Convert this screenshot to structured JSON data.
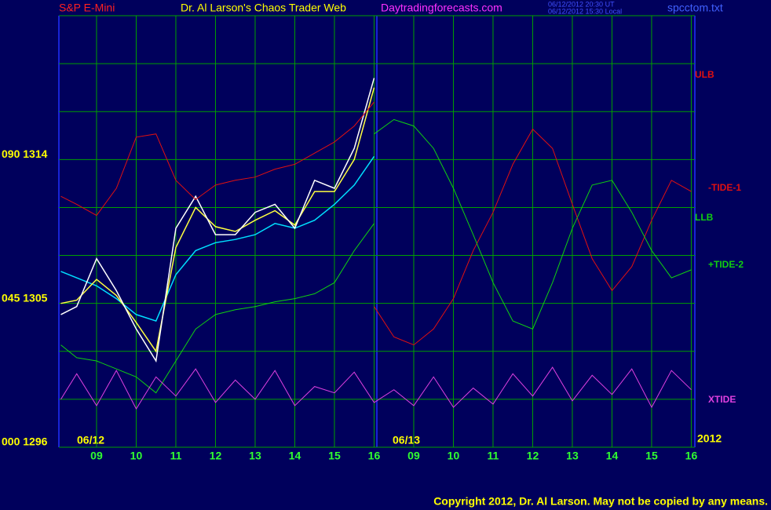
{
  "chart_data": {
    "type": "line",
    "header": {
      "instrument": "S&P E-Mini",
      "title": "Dr. Al Larson's Chaos Trader Web",
      "site": "Daytradingforecasts.com",
      "time_ut": "06/12/2012 20:30 UT",
      "time_local": "06/12/2012 15:30 Local",
      "file": "spcctom.txt"
    },
    "day_labels": [
      "06/12",
      "06/13"
    ],
    "year_label": "2012",
    "copyright": "Copyright 2012, Dr. Al Larson. May not be copied by any means.",
    "x": [
      -0.9,
      -0.5,
      0,
      0.5,
      1,
      1.5,
      2,
      2.5,
      3,
      3.5,
      4,
      4.5,
      5,
      5.5,
      6,
      6.5,
      7,
      7.5,
      8,
      8.5,
      9,
      9.5,
      10,
      10.5,
      11,
      11.5,
      12,
      12.5,
      13,
      13.5,
      14,
      14.5,
      15
    ],
    "xlim": [
      -0.95,
      15.09
    ],
    "xticks": [
      {
        "value": 0,
        "label": "09"
      },
      {
        "value": 1,
        "label": "10"
      },
      {
        "value": 2,
        "label": "11"
      },
      {
        "value": 3,
        "label": "12"
      },
      {
        "value": 4,
        "label": "13"
      },
      {
        "value": 5,
        "label": "14"
      },
      {
        "value": 6,
        "label": "15"
      },
      {
        "value": 7,
        "label": "16"
      },
      {
        "value": 8,
        "label": "09"
      },
      {
        "value": 9,
        "label": "10"
      },
      {
        "value": 10,
        "label": "11"
      },
      {
        "value": 11,
        "label": "12"
      },
      {
        "value": 12,
        "label": "13"
      },
      {
        "value": 13,
        "label": "14"
      },
      {
        "value": 14,
        "label": "15"
      },
      {
        "value": 15,
        "label": "16"
      }
    ],
    "ylim": [
      1296,
      1323
    ],
    "yticks": [
      {
        "value": 1296,
        "label": "000 1296"
      },
      {
        "value": 1305,
        "label": "045 1305"
      },
      {
        "value": 1314,
        "label": "090 1314"
      }
    ],
    "ygrid": [
      1299,
      1302,
      1308,
      1311,
      1317,
      1320
    ],
    "grid": true,
    "series": [
      {
        "color": "#00e0ff",
        "values": [
          1307.0,
          1306.6,
          1306.1,
          1305.3,
          1304.3,
          1303.9,
          1306.8,
          1308.3,
          1308.8,
          1309.0,
          1309.3,
          1310.0,
          1309.7,
          1310.2,
          1311.2,
          1312.4,
          1314.2,
          null,
          null,
          null,
          null,
          null,
          null,
          null,
          null,
          null,
          null,
          null,
          null,
          null,
          null,
          null,
          null
        ]
      },
      {
        "color": "#ffff40",
        "values": [
          1305.0,
          1305.2,
          1306.5,
          1305.5,
          1303.8,
          1302.0,
          1308.5,
          1311.0,
          1309.8,
          1309.5,
          1310.2,
          1310.8,
          1309.9,
          1312.0,
          1312.0,
          1314.0,
          1318.5,
          null,
          null,
          null,
          null,
          null,
          null,
          null,
          null,
          null,
          null,
          null,
          null,
          null,
          null,
          null,
          null
        ]
      },
      {
        "color": "#ffffff",
        "values": [
          1304.3,
          1304.8,
          1307.8,
          1305.8,
          1303.4,
          1301.4,
          1309.7,
          1311.7,
          1309.3,
          1309.3,
          1310.7,
          1311.2,
          1309.7,
          1312.7,
          1312.2,
          1314.7,
          1319.1,
          null,
          null,
          null,
          null,
          null,
          null,
          null,
          null,
          null,
          null,
          null,
          null,
          null,
          null,
          null,
          null
        ]
      },
      {
        "name": "ULB",
        "color": "#e01010",
        "values": [
          1311.7,
          1311.2,
          1310.5,
          1312.2,
          1315.4,
          1315.6,
          1312.7,
          1311.5,
          1312.4,
          1312.7,
          1312.9,
          1313.4,
          1313.7,
          1314.4,
          1315.1,
          1316.1,
          1317.6,
          null,
          null,
          null,
          null,
          null,
          null,
          null,
          null,
          null,
          null,
          null,
          null,
          null,
          null,
          null,
          null
        ]
      },
      {
        "name": "-TIDE-1",
        "color": "#e01010",
        "values": [
          null,
          null,
          null,
          null,
          null,
          null,
          null,
          null,
          null,
          null,
          null,
          null,
          null,
          null,
          null,
          null,
          1304.8,
          1302.9,
          1302.4,
          1303.4,
          1305.3,
          1308.3,
          1310.7,
          1313.7,
          1315.9,
          1314.7,
          1311.2,
          1307.8,
          1305.8,
          1307.3,
          1310.2,
          1312.7,
          1312.0
        ]
      },
      {
        "name": "LLB",
        "color": "#10d010",
        "values": [
          1302.4,
          1301.6,
          1301.4,
          1300.9,
          1300.4,
          1299.4,
          1301.4,
          1303.4,
          1304.3,
          1304.6,
          1304.8,
          1305.1,
          1305.3,
          1305.6,
          1306.3,
          1308.3,
          1310.0,
          null,
          null,
          null,
          null,
          null,
          null,
          null,
          null,
          null,
          null,
          null,
          null,
          null,
          null,
          null,
          null
        ]
      },
      {
        "name": "+TIDE-2",
        "color": "#10d010",
        "values": [
          null,
          null,
          null,
          null,
          null,
          null,
          null,
          null,
          null,
          null,
          null,
          null,
          null,
          null,
          null,
          null,
          1315.6,
          1316.5,
          1316.1,
          1314.7,
          1312.2,
          1309.3,
          1306.3,
          1303.9,
          1303.4,
          1306.3,
          1309.7,
          1312.4,
          1312.7,
          1310.7,
          1308.3,
          1306.6,
          1307.1
        ]
      },
      {
        "name": "XTIDE",
        "color": "#e040e0",
        "values": [
          1299.0,
          1300.6,
          1298.6,
          1300.8,
          1298.4,
          1300.4,
          1299.2,
          1300.9,
          1298.8,
          1300.2,
          1299.0,
          1300.8,
          1298.6,
          1299.8,
          1299.4,
          1300.7,
          1298.8,
          1299.6,
          1298.6,
          1300.4,
          1298.5,
          1299.7,
          1298.7,
          1300.6,
          1299.2,
          1301.0,
          1298.9,
          1300.5,
          1299.3,
          1300.9,
          1298.5,
          1300.8,
          1299.6
        ]
      }
    ]
  }
}
